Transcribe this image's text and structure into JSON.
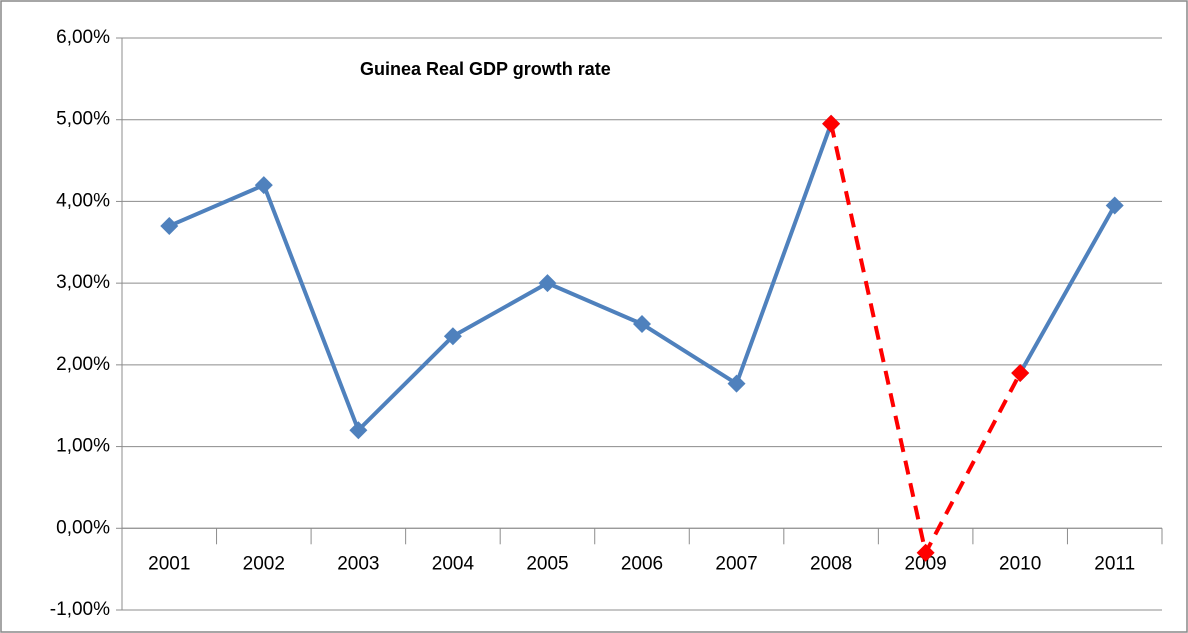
{
  "chart_data": {
    "type": "line",
    "title": "Guinea  Real GDP growth rate",
    "categories": [
      "2001",
      "2002",
      "2003",
      "2004",
      "2005",
      "2006",
      "2007",
      "2008",
      "2009",
      "2010",
      "2011"
    ],
    "series": [
      {
        "color": "#4f81bd",
        "dashed": false,
        "values": [
          3.7,
          4.2,
          1.2,
          2.35,
          3.0,
          2.5,
          1.77,
          4.95,
          null,
          1.9,
          3.95
        ]
      },
      {
        "color": "#ff0000",
        "dashed": true,
        "values": [
          null,
          null,
          null,
          null,
          null,
          null,
          null,
          4.95,
          -0.3,
          1.9,
          null
        ]
      }
    ],
    "ylim": [
      -1,
      6
    ],
    "yticks": [
      {
        "value": -1,
        "label": "-1,00%"
      },
      {
        "value": 0,
        "label": "0,00%"
      },
      {
        "value": 1,
        "label": "1,00%"
      },
      {
        "value": 2,
        "label": "2,00%"
      },
      {
        "value": 3,
        "label": "3,00%"
      },
      {
        "value": 4,
        "label": "4,00%"
      },
      {
        "value": 5,
        "label": "5,00%"
      },
      {
        "value": 6,
        "label": "6,00%"
      }
    ],
    "grid": true
  }
}
